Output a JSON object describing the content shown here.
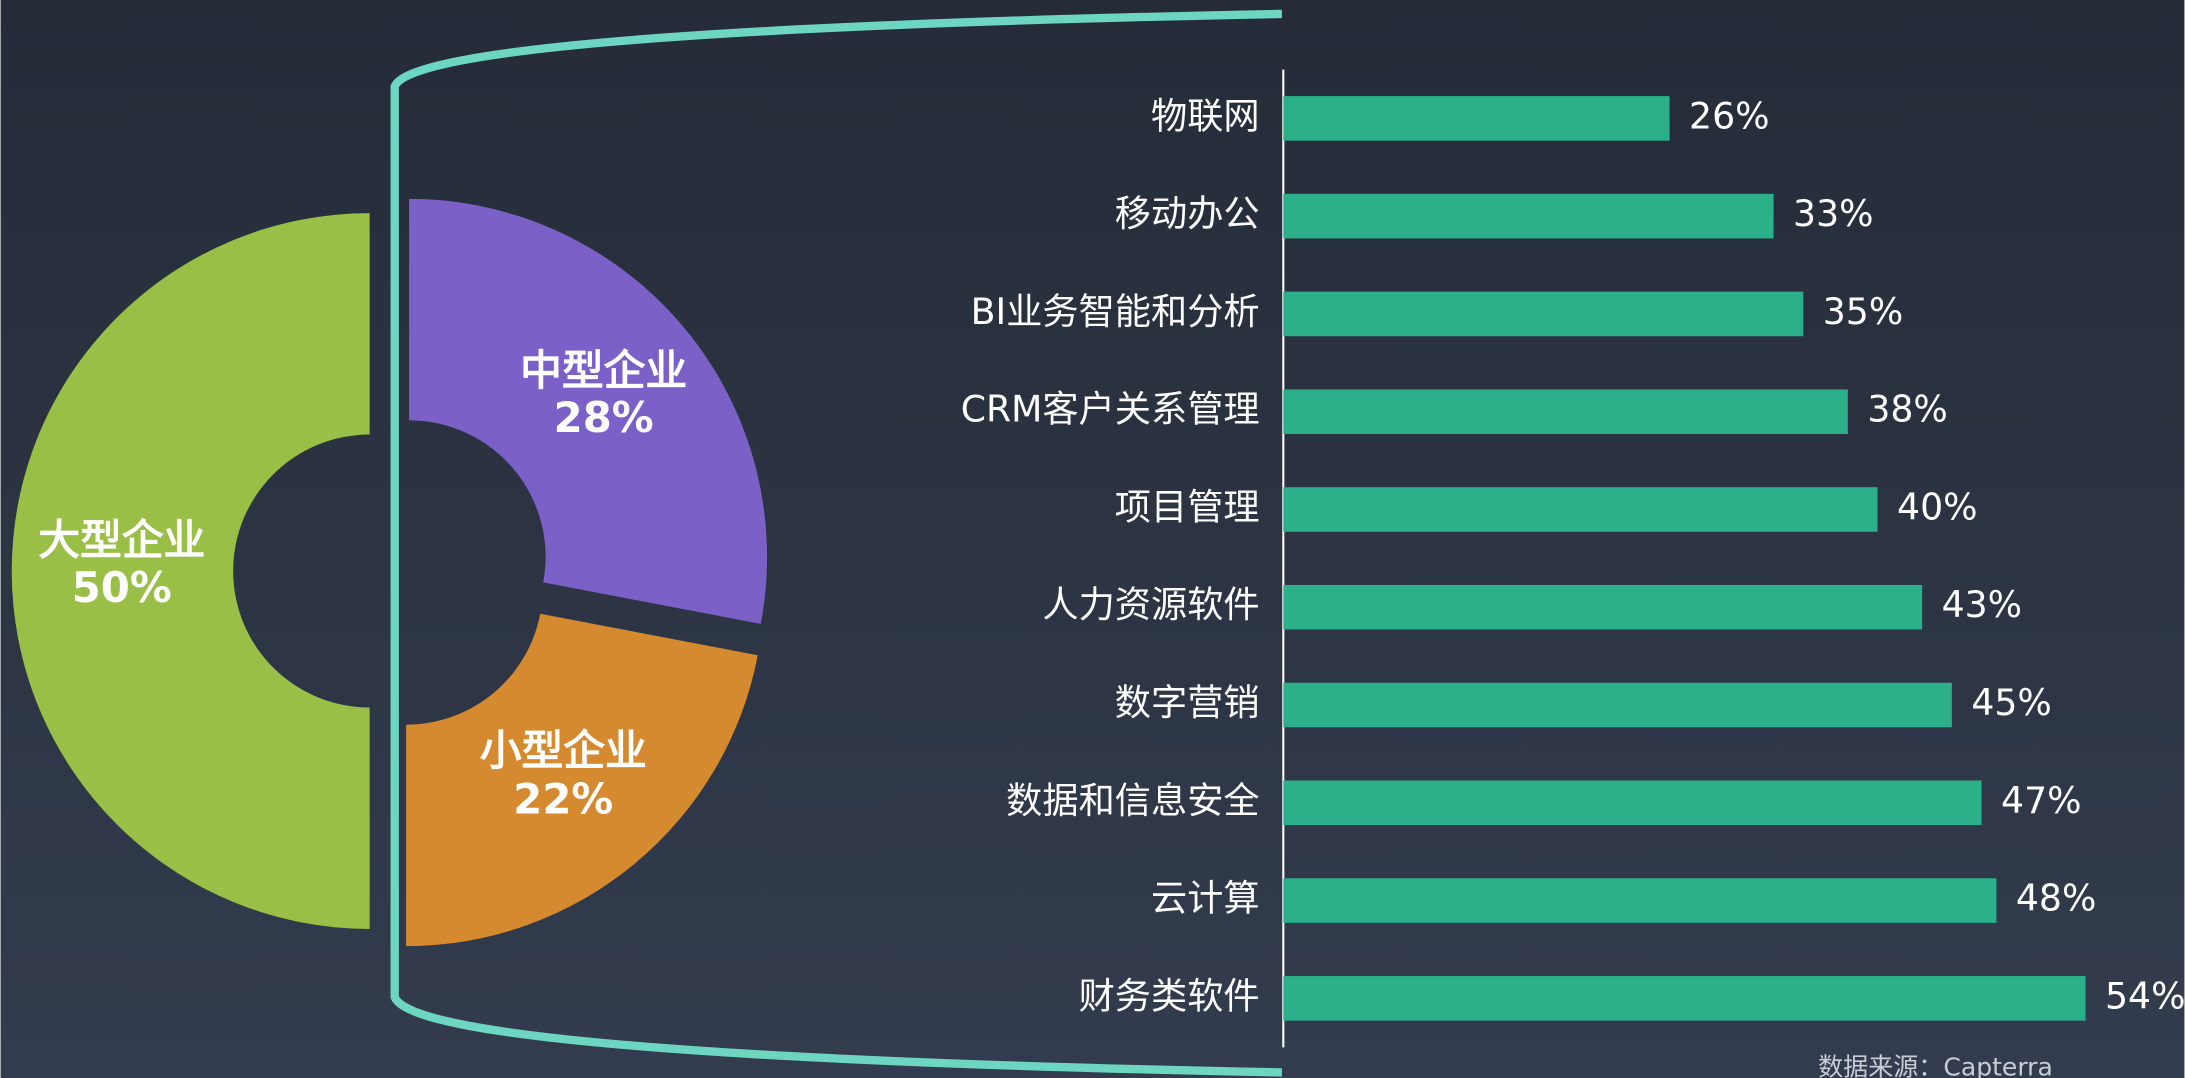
{
  "chart_data": [
    {
      "type": "pie",
      "categories": [
        "大型企业",
        "中型企业",
        "小型企业"
      ],
      "values": [
        50,
        28,
        22
      ],
      "value_labels": [
        "50%",
        "28%",
        "22%"
      ],
      "colors": [
        "#99bf46",
        "#7b61c7",
        "#d68a2f"
      ]
    },
    {
      "type": "bar",
      "categories": [
        "物联网",
        "移动办公",
        "BI业务智能和分析",
        "CRM客户关系管理",
        "项目管理",
        "人力资源软件",
        "数字营销",
        "数据和信息安全",
        "云计算",
        "财务类软件"
      ],
      "values": [
        26,
        33,
        35,
        38,
        40,
        43,
        45,
        47,
        48,
        54
      ],
      "value_labels": [
        "26%",
        "33%",
        "35%",
        "38%",
        "40%",
        "43%",
        "45%",
        "47%",
        "48%",
        "54%"
      ],
      "color": "#2bb08a",
      "source": "数据来源：Capterra"
    }
  ]
}
